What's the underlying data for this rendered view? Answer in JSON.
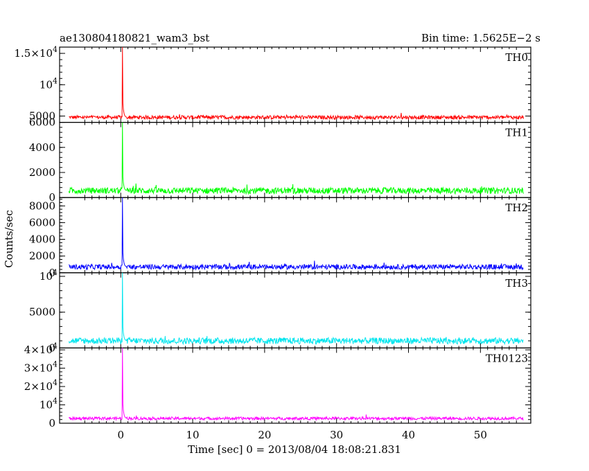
{
  "header": {
    "title": "ae130804180821_wam3_bst",
    "bin_time": "Bin time: 1.5625E−2 s"
  },
  "chart_data": {
    "type": "line",
    "title": "ae130804180821_wam3_bst",
    "xlabel": "Time [sec] 0 = 2013/08/04 18:08:21.831",
    "ylabel": "Counts/sec",
    "xlim": [
      -8.5,
      57
    ],
    "x_ticks": [
      0,
      10,
      20,
      30,
      40,
      50
    ],
    "x_range_data": [
      -7.2,
      56
    ],
    "grid": false,
    "panels": [
      {
        "name": "TH0",
        "color": "#ff0000",
        "ylim": [
          4000,
          16000
        ],
        "y_ticks": [
          {
            "value": 5000,
            "label": "5000"
          },
          {
            "value": 10000,
            "label": "10",
            "exp": "4"
          },
          {
            "value": 15000,
            "label": "1.5×10",
            "exp": "4"
          }
        ],
        "baseline": 4800,
        "noise": 600,
        "peak_time": 0.2,
        "peak_value": 16000
      },
      {
        "name": "TH1",
        "color": "#00ff00",
        "ylim": [
          0,
          6000
        ],
        "y_ticks": [
          {
            "value": 0,
            "label": "0"
          },
          {
            "value": 2000,
            "label": "2000"
          },
          {
            "value": 4000,
            "label": "4000"
          },
          {
            "value": 6000,
            "label": "6000"
          }
        ],
        "baseline": 550,
        "noise": 500,
        "peak_time": 0.2,
        "peak_value": 6000
      },
      {
        "name": "TH2",
        "color": "#0000ff",
        "ylim": [
          0,
          9000
        ],
        "y_ticks": [
          {
            "value": 0,
            "label": "0"
          },
          {
            "value": 2000,
            "label": "2000"
          },
          {
            "value": 4000,
            "label": "4000"
          },
          {
            "value": 6000,
            "label": "6000"
          },
          {
            "value": 8000,
            "label": "8000"
          }
        ],
        "baseline": 700,
        "noise": 600,
        "peak_time": 0.2,
        "peak_value": 9000
      },
      {
        "name": "TH3",
        "color": "#00e5ee",
        "ylim": [
          0,
          10500
        ],
        "y_ticks": [
          {
            "value": 0,
            "label": "0"
          },
          {
            "value": 5000,
            "label": "5000"
          },
          {
            "value": 10000,
            "label": "10",
            "exp": "4"
          }
        ],
        "baseline": 1000,
        "noise": 900,
        "peak_time": 0.2,
        "peak_value": 10500
      },
      {
        "name": "TH0123",
        "color": "#ff00ff",
        "ylim": [
          0,
          41000
        ],
        "y_ticks": [
          {
            "value": 0,
            "label": "0"
          },
          {
            "value": 10000,
            "label": "10",
            "exp": "4"
          },
          {
            "value": 20000,
            "label": "2×10",
            "exp": "4"
          },
          {
            "value": 30000,
            "label": "3×10",
            "exp": "4"
          },
          {
            "value": 40000,
            "label": "4×10",
            "exp": "4"
          }
        ],
        "baseline": 2600,
        "noise": 1600,
        "peak_time": 0.2,
        "peak_value": 41000
      }
    ]
  }
}
